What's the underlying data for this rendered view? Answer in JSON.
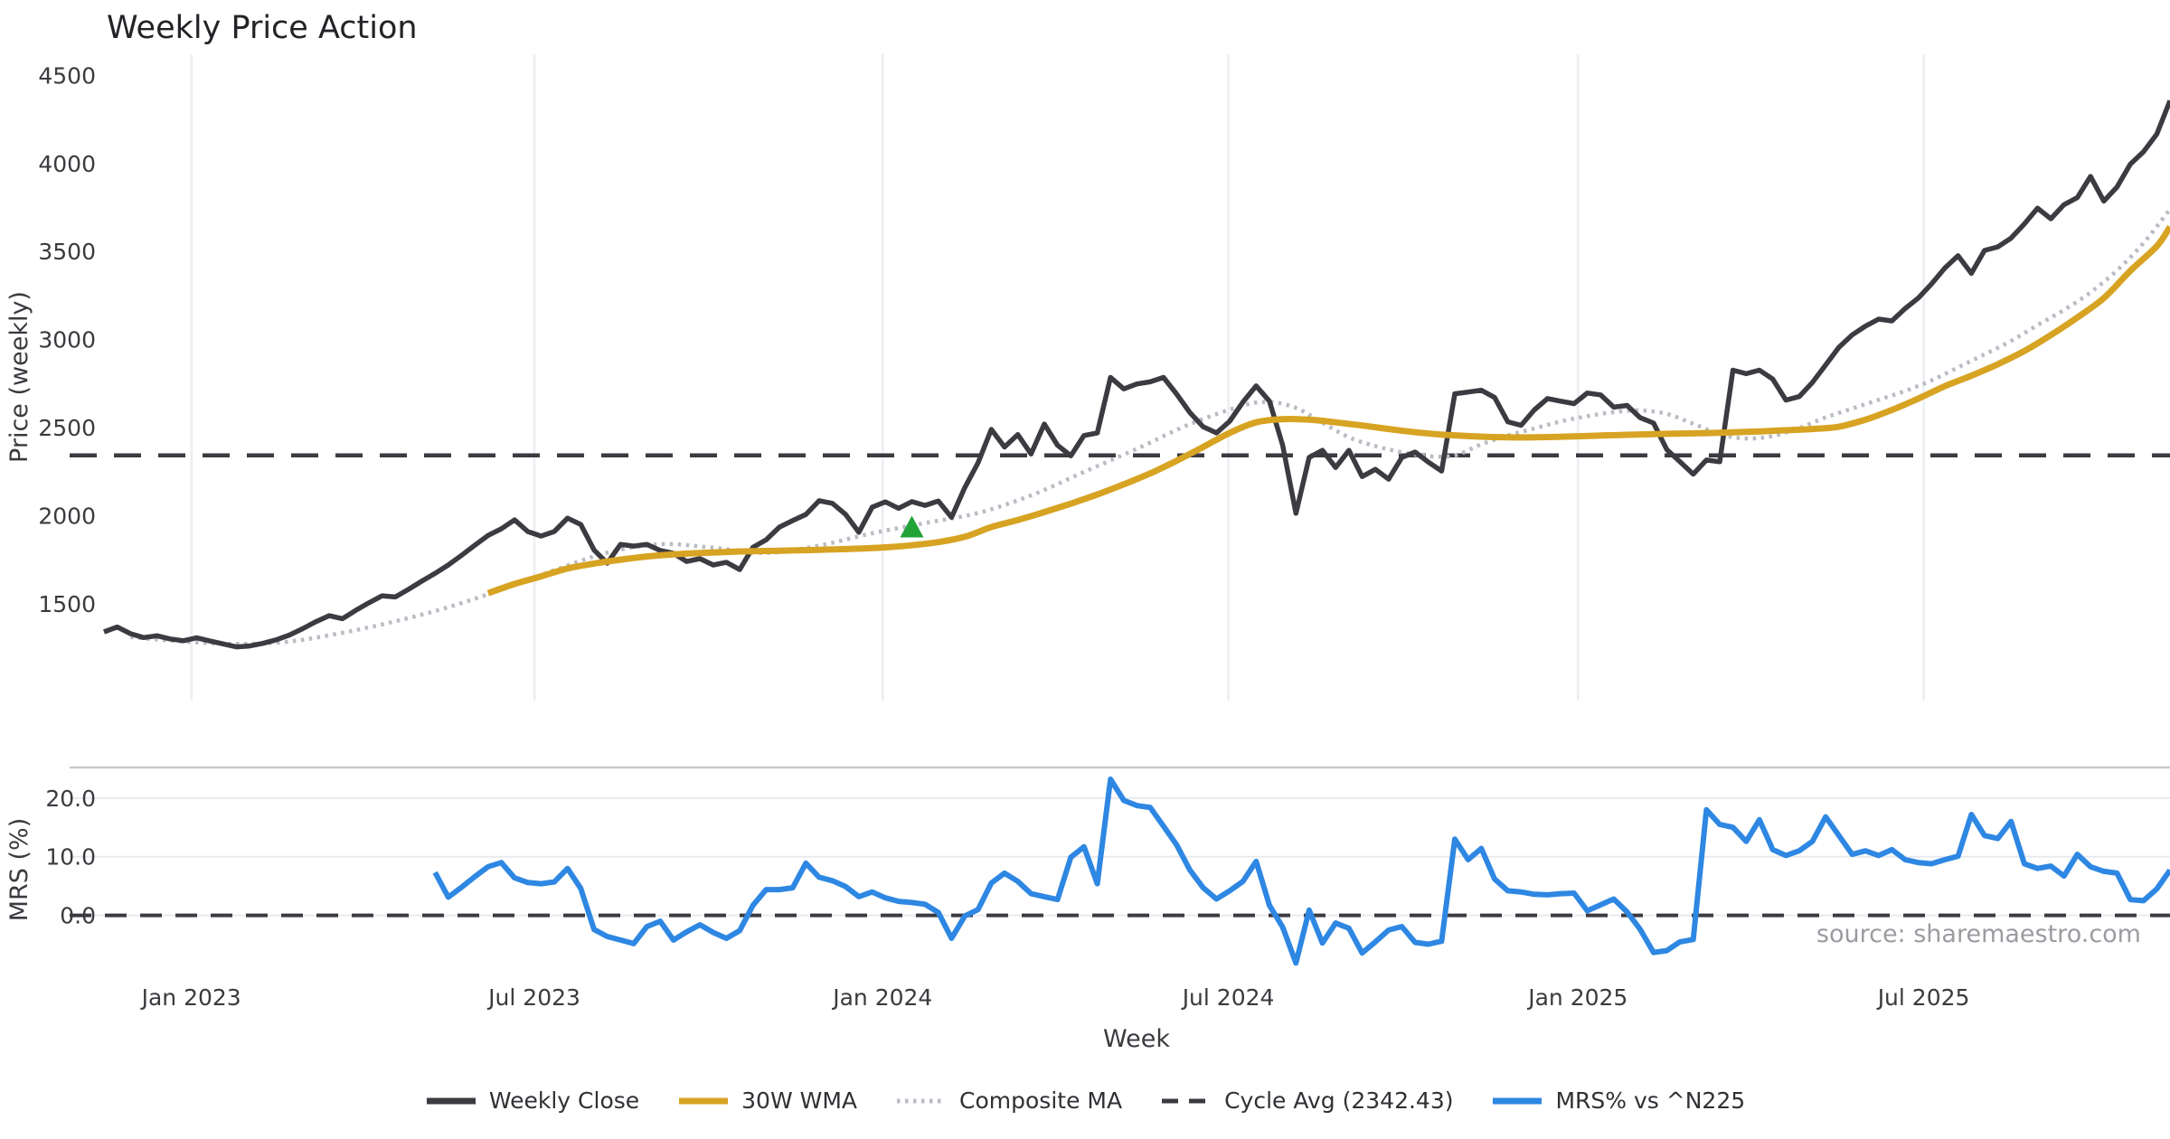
{
  "title": "Weekly Price Action",
  "source_note": "source: sharemaestro.com",
  "x_axis": {
    "title": "Week",
    "ticks": [
      {
        "label": "Jan 2023",
        "week": 6.6
      },
      {
        "label": "Jul 2023",
        "week": 32.5
      },
      {
        "label": "Jan 2024",
        "week": 58.8
      },
      {
        "label": "Jul 2024",
        "week": 84.9
      },
      {
        "label": "Jan 2025",
        "week": 111.3
      },
      {
        "label": "Jul 2025",
        "week": 137.4
      }
    ]
  },
  "panels": {
    "price": {
      "y_label": "Price (weekly)",
      "ylim": [
        950,
        4620
      ],
      "y_ticks": [
        1500,
        2000,
        2500,
        3000,
        3500,
        4000,
        4500
      ],
      "y_tick_decimals": 0,
      "grid": "vertical-only"
    },
    "mrs": {
      "y_label": "MRS (%)",
      "ylim": [
        -9.6,
        25.2
      ],
      "y_ticks": [
        0,
        10,
        20
      ],
      "y_tick_decimals": 1,
      "zero_line_dashed": true,
      "top_spine": true,
      "grid": "horizontal-only"
    }
  },
  "legend": [
    {
      "label": "Weekly Close",
      "color": "#3b3b41",
      "style": "solid"
    },
    {
      "label": "30W WMA",
      "color": "#d7a322",
      "style": "solid"
    },
    {
      "label": "Composite MA",
      "color": "#b9bcc4",
      "style": "dotted"
    },
    {
      "label": "Cycle Avg (2342.43)",
      "color": "#3a3a40",
      "style": "dashed"
    },
    {
      "label": "MRS% vs ^N225",
      "color": "#2e87e2",
      "style": "solid"
    }
  ],
  "colors": {
    "background": "#ffffff",
    "grid_vertical": "#edeef2",
    "grid_horizontal": "#e9eaee",
    "panel_spine": "#c7c9cd",
    "weekly_close": "#3b3b41",
    "wma_30w": "#d7a322",
    "composite_ma": "#b9bcc4",
    "cycle_avg": "#3a3a40",
    "mrs_line": "#2e87e2",
    "marker_green": "#22a338",
    "tick_text": "#3a3a3f",
    "title_text": "#232327",
    "source_text": "#9b9ba1"
  },
  "chart_data": {
    "type": "line",
    "weeks_total": 156,
    "x_start": "first plotted week ~mid-Nov 2022, weekly steps; month gridlines per x_axis.ticks",
    "series": [
      {
        "name": "Weekly Close",
        "panel": "price",
        "color": "#3b3b41",
        "style": "solid",
        "width": 5.5,
        "start_week": 0,
        "values": [
          1340,
          1368,
          1330,
          1308,
          1318,
          1300,
          1290,
          1306,
          1288,
          1272,
          1255,
          1260,
          1275,
          1295,
          1322,
          1358,
          1398,
          1432,
          1415,
          1462,
          1505,
          1545,
          1538,
          1582,
          1628,
          1672,
          1720,
          1775,
          1832,
          1888,
          1925,
          1976,
          1910,
          1884,
          1910,
          1986,
          1950,
          1805,
          1730,
          1837,
          1827,
          1837,
          1802,
          1786,
          1740,
          1756,
          1720,
          1735,
          1694,
          1820,
          1863,
          1935,
          1972,
          2007,
          2085,
          2070,
          2007,
          1905,
          2048,
          2078,
          2042,
          2080,
          2058,
          2083,
          1991,
          2160,
          2300,
          2490,
          2390,
          2460,
          2350,
          2520,
          2400,
          2340,
          2455,
          2470,
          2785,
          2720,
          2748,
          2760,
          2785,
          2690,
          2585,
          2505,
          2470,
          2536,
          2645,
          2737,
          2650,
          2400,
          2013,
          2330,
          2371,
          2273,
          2371,
          2222,
          2263,
          2207,
          2330,
          2361,
          2304,
          2253,
          2692,
          2702,
          2712,
          2671,
          2533,
          2513,
          2600,
          2665,
          2650,
          2636,
          2696,
          2686,
          2616,
          2626,
          2556,
          2526,
          2376,
          2306,
          2236,
          2316,
          2306,
          2826,
          2806,
          2826,
          2776,
          2656,
          2676,
          2756,
          2856,
          2956,
          3026,
          3076,
          3116,
          3106,
          3176,
          3236,
          3316,
          3406,
          3476,
          3376,
          3506,
          3526,
          3576,
          3656,
          3746,
          3686,
          3766,
          3806,
          3926,
          3786,
          3866,
          3996,
          4066,
          4166,
          4356
        ]
      },
      {
        "name": "30W WMA",
        "panel": "price",
        "color": "#d7a322",
        "style": "solid",
        "width": 7,
        "smooth": true,
        "anchors": [
          [
            29,
            1560
          ],
          [
            31,
            1612
          ],
          [
            33,
            1655
          ],
          [
            35,
            1700
          ],
          [
            37,
            1728
          ],
          [
            39,
            1750
          ],
          [
            41,
            1768
          ],
          [
            43,
            1780
          ],
          [
            45,
            1788
          ],
          [
            47,
            1794
          ],
          [
            49,
            1798
          ],
          [
            51,
            1801
          ],
          [
            53,
            1804
          ],
          [
            55,
            1808
          ],
          [
            57,
            1813
          ],
          [
            59,
            1820
          ],
          [
            61,
            1832
          ],
          [
            63,
            1850
          ],
          [
            65,
            1880
          ],
          [
            67,
            1935
          ],
          [
            69,
            1975
          ],
          [
            71,
            2020
          ],
          [
            73,
            2068
          ],
          [
            75,
            2120
          ],
          [
            77,
            2178
          ],
          [
            79,
            2240
          ],
          [
            81,
            2312
          ],
          [
            83,
            2390
          ],
          [
            85,
            2470
          ],
          [
            87,
            2530
          ],
          [
            89,
            2548
          ],
          [
            91,
            2545
          ],
          [
            93,
            2530
          ],
          [
            95,
            2512
          ],
          [
            97,
            2492
          ],
          [
            99,
            2474
          ],
          [
            101,
            2460
          ],
          [
            103,
            2452
          ],
          [
            105,
            2446
          ],
          [
            107,
            2444
          ],
          [
            109,
            2446
          ],
          [
            111,
            2450
          ],
          [
            113,
            2455
          ],
          [
            115,
            2459
          ],
          [
            117,
            2463
          ],
          [
            119,
            2466
          ],
          [
            121,
            2469
          ],
          [
            123,
            2473
          ],
          [
            125,
            2478
          ],
          [
            127,
            2485
          ],
          [
            129,
            2492
          ],
          [
            131,
            2505
          ],
          [
            133,
            2545
          ],
          [
            135,
            2600
          ],
          [
            137,
            2665
          ],
          [
            139,
            2735
          ],
          [
            141,
            2795
          ],
          [
            143,
            2860
          ],
          [
            145,
            2935
          ],
          [
            147,
            3025
          ],
          [
            149,
            3125
          ],
          [
            151,
            3235
          ],
          [
            153,
            3390
          ],
          [
            155,
            3530
          ],
          [
            156,
            3640
          ]
        ]
      },
      {
        "name": "Composite MA",
        "panel": "price",
        "color": "#b9bcc4",
        "style": "dotted",
        "width": 4.5,
        "smooth": true,
        "anchors": [
          [
            2,
            1310
          ],
          [
            6,
            1285
          ],
          [
            10,
            1272
          ],
          [
            14,
            1285
          ],
          [
            18,
            1335
          ],
          [
            22,
            1400
          ],
          [
            26,
            1480
          ],
          [
            30,
            1580
          ],
          [
            34,
            1690
          ],
          [
            38,
            1790
          ],
          [
            42,
            1838
          ],
          [
            46,
            1818
          ],
          [
            50,
            1788
          ],
          [
            54,
            1830
          ],
          [
            58,
            1900
          ],
          [
            62,
            1958
          ],
          [
            66,
            2015
          ],
          [
            70,
            2115
          ],
          [
            74,
            2248
          ],
          [
            78,
            2380
          ],
          [
            82,
            2520
          ],
          [
            86,
            2625
          ],
          [
            88,
            2645
          ],
          [
            90,
            2612
          ],
          [
            92,
            2528
          ],
          [
            94,
            2445
          ],
          [
            96,
            2395
          ],
          [
            98,
            2360
          ],
          [
            100,
            2338
          ],
          [
            102,
            2342
          ],
          [
            104,
            2405
          ],
          [
            106,
            2455
          ],
          [
            108,
            2495
          ],
          [
            110,
            2535
          ],
          [
            112,
            2565
          ],
          [
            114,
            2588
          ],
          [
            116,
            2598
          ],
          [
            118,
            2578
          ],
          [
            120,
            2522
          ],
          [
            122,
            2462
          ],
          [
            124,
            2438
          ],
          [
            126,
            2452
          ],
          [
            128,
            2498
          ],
          [
            130,
            2558
          ],
          [
            132,
            2608
          ],
          [
            134,
            2658
          ],
          [
            136,
            2708
          ],
          [
            138,
            2768
          ],
          [
            140,
            2842
          ],
          [
            142,
            2916
          ],
          [
            144,
            2992
          ],
          [
            146,
            3082
          ],
          [
            148,
            3168
          ],
          [
            150,
            3268
          ],
          [
            152,
            3392
          ],
          [
            154,
            3548
          ],
          [
            156,
            3740
          ]
        ]
      },
      {
        "name": "Cycle Avg (2342.43)",
        "panel": "price",
        "color": "#3a3a40",
        "style": "dashed",
        "width": 4.5,
        "hline": 2342.43
      },
      {
        "name": "MRS% vs ^N225",
        "panel": "mrs",
        "color": "#2e87e2",
        "style": "solid",
        "width": 6,
        "start_week": 25,
        "values": [
          7.3,
          3.1,
          4.8,
          6.6,
          8.3,
          9.0,
          6.4,
          5.6,
          5.4,
          5.7,
          8.0,
          4.6,
          -2.4,
          -3.6,
          -4.2,
          -4.8,
          -1.9,
          -1.0,
          -4.2,
          -2.8,
          -1.6,
          -2.9,
          -3.9,
          -2.6,
          1.7,
          4.4,
          4.4,
          4.7,
          8.9,
          6.5,
          5.9,
          4.9,
          3.2,
          4.0,
          3.0,
          2.4,
          2.2,
          1.9,
          0.5,
          -3.9,
          -0.1,
          1.0,
          5.5,
          7.2,
          5.8,
          3.7,
          3.2,
          2.7,
          9.9,
          11.7,
          5.4,
          23.2,
          19.6,
          18.7,
          18.4,
          15.2,
          12.0,
          7.7,
          4.7,
          2.8,
          4.2,
          5.8,
          9.2,
          1.7,
          -2.0,
          -8.1,
          0.9,
          -4.7,
          -1.3,
          -2.2,
          -6.4,
          -4.5,
          -2.5,
          -1.9,
          -4.6,
          -4.9,
          -4.4,
          13.0,
          9.5,
          11.4,
          6.2,
          4.2,
          4.0,
          3.6,
          3.5,
          3.7,
          3.8,
          0.8,
          1.8,
          2.8,
          0.6,
          -2.4,
          -6.3,
          -6.0,
          -4.5,
          -4.1,
          18.0,
          15.5,
          15.0,
          12.6,
          16.3,
          11.2,
          10.2,
          11.0,
          12.6,
          16.8,
          13.6,
          10.4,
          11.0,
          10.2,
          11.2,
          9.5,
          9.0,
          8.8,
          9.5,
          10.1,
          17.2,
          13.6,
          13.1,
          16.0,
          8.8,
          8.0,
          8.4,
          6.7,
          10.4,
          8.3,
          7.5,
          7.2,
          2.7,
          2.5,
          4.5,
          7.7
        ]
      }
    ],
    "markers": [
      {
        "name": "signal-triangle-up",
        "shape": "triangle-up",
        "color": "#22a338",
        "panel": "price",
        "week": 61,
        "value": 1928,
        "size": 26
      }
    ]
  }
}
